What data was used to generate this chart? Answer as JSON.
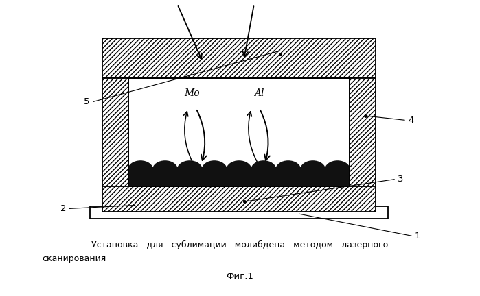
{
  "fig_width": 6.99,
  "fig_height": 4.32,
  "dpi": 100,
  "bg_color": "#ffffff",
  "line_color": "#000000",
  "title_line1": "Установка   для   сублимации   молибдена   методом   лазерного",
  "title_line2": "сканирования",
  "fig_label": "Фиг.1",
  "label_Mo": "Mo",
  "label_Al": "Al"
}
